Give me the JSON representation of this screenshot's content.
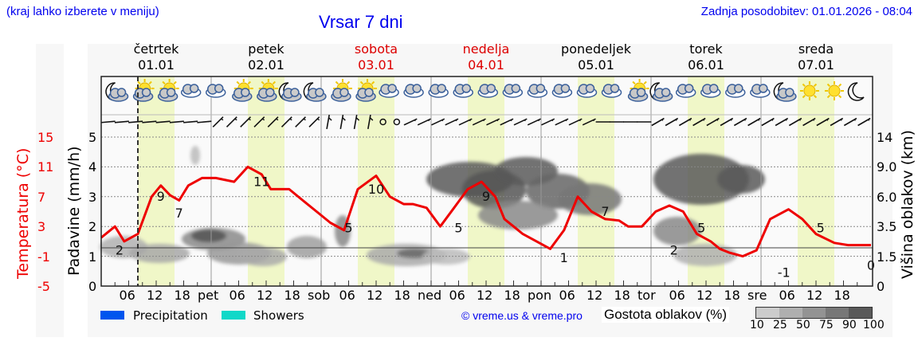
{
  "header": {
    "note": "(kraj lahko izberete v meniju)",
    "title": "Vrsar 7 dni",
    "updated": "Zadnja posodobitev: 01.01.2026 - 08:04"
  },
  "days": [
    {
      "name": "četrtek",
      "date": "01.01",
      "weekend": false
    },
    {
      "name": "petek",
      "date": "02.01",
      "weekend": false
    },
    {
      "name": "sobota",
      "date": "03.01",
      "weekend": true
    },
    {
      "name": "nedelja",
      "date": "04.01",
      "weekend": true
    },
    {
      "name": "ponedeljek",
      "date": "05.01",
      "weekend": false
    },
    {
      "name": "torek",
      "date": "06.01",
      "weekend": false
    },
    {
      "name": "sreda",
      "date": "07.01",
      "weekend": false
    }
  ],
  "weather_icons": [
    "moon-cloud",
    "sun-cloud",
    "sun-cloud",
    "cloud",
    "cloud",
    "sun-cloud",
    "sun-cloud",
    "moon-cloud",
    "moon-cloud",
    "sun-cloud",
    "sun-cloud",
    "cloud",
    "cloud",
    "cloud",
    "cloud",
    "cloud",
    "cloud",
    "cloud",
    "cloud",
    "cloud",
    "cloud",
    "sun-cloud",
    "moon-cloud",
    "cloud",
    "cloud",
    "cloud",
    "cloud",
    "moon-cloud",
    "sun",
    "sun",
    "moon"
  ],
  "axes": {
    "left_temp_label": "Temperatura (°C)",
    "left_temp_ticks": [
      "15",
      "11",
      "7",
      "3",
      "-1",
      "-5"
    ],
    "left_precip_label": "Padavine (mm/h)",
    "left_precip_ticks": [
      "5",
      "4",
      "3",
      "2",
      "1",
      "0"
    ],
    "right_label": "Višina oblakov (km)",
    "right_ticks": [
      "14",
      "9.0",
      "6.0",
      "3.5",
      "1.5",
      "0"
    ],
    "x_ticks": [
      "06",
      "12",
      "18",
      "pet",
      "06",
      "12",
      "18",
      "sob",
      "06",
      "12",
      "18",
      "ned",
      "06",
      "12",
      "18",
      "pon",
      "06",
      "12",
      "18",
      "tor",
      "06",
      "12",
      "18",
      "sre",
      "06",
      "12",
      "18"
    ]
  },
  "legend": {
    "precip_label": "Precipitation",
    "precip_color": "#0055ee",
    "showers_label": "Showers",
    "showers_color": "#11d8c8",
    "copyright": "© vreme.us & vreme.pro",
    "cloud_density_label": "Gostota oblakov (%)",
    "cloud_density_ticks": [
      "10",
      "25",
      "50",
      "75",
      "90",
      "100"
    ],
    "cloud_density_colors": [
      "#cccccc",
      "#afafaf",
      "#939393",
      "#777777",
      "#595959"
    ]
  },
  "chart_data": {
    "type": "line",
    "title": "Vrsar 7 dni",
    "xlabel": "",
    "ylabel": "Temperatura (°C)",
    "ylim": [
      -5,
      15
    ],
    "now_marker_hour": 8,
    "series": [
      {
        "name": "Temperatura (°C)",
        "color": "#ee0000",
        "hours": [
          0,
          3,
          5,
          8,
          11,
          13,
          15,
          17,
          19,
          22,
          25,
          29,
          32,
          35,
          37,
          41,
          44,
          47,
          50,
          53,
          56,
          60,
          63,
          66,
          68,
          71,
          74,
          77,
          80,
          83,
          86,
          88,
          90,
          92,
          95,
          98,
          101,
          104,
          107,
          110,
          113,
          115,
          118,
          121,
          124,
          127,
          130,
          133,
          135,
          137,
          140,
          143,
          146,
          150,
          153,
          156,
          160,
          163,
          166,
          168
        ],
        "values": [
          1.5,
          3,
          1,
          2,
          7,
          8.5,
          7.2,
          6.5,
          8.5,
          9.5,
          9.5,
          9,
          11,
          10,
          8,
          8,
          6.5,
          5,
          3.5,
          2.5,
          8,
          9.8,
          7,
          6,
          6,
          5.5,
          3,
          5.5,
          8,
          9,
          7,
          4,
          3,
          2,
          1,
          0,
          2.5,
          7,
          5,
          4,
          3.8,
          3,
          3,
          5,
          5.8,
          5,
          2,
          1,
          0,
          -0.5,
          -1,
          -0.2,
          4,
          5.3,
          4,
          2,
          0.8,
          0.5,
          0.5,
          0.5
        ]
      }
    ],
    "extrema_labels": [
      {
        "hour": 4,
        "value": 2
      },
      {
        "hour": 13,
        "value": 9
      },
      {
        "hour": 17,
        "value": 7
      },
      {
        "hour": 35,
        "value": 11
      },
      {
        "hour": 54,
        "value": 5
      },
      {
        "hour": 60,
        "value": 10
      },
      {
        "hour": 78,
        "value": 5
      },
      {
        "hour": 84,
        "value": 9
      },
      {
        "hour": 101,
        "value": 1
      },
      {
        "hour": 110,
        "value": 7
      },
      {
        "hour": 125,
        "value": 2
      },
      {
        "hour": 131,
        "value": 5
      },
      {
        "hour": 149,
        "value": -1
      },
      {
        "hour": 157,
        "value": 5
      },
      {
        "hour": 168,
        "value": 0
      }
    ],
    "precip_axis": {
      "label": "Padavine (mm/h)",
      "ylim": [
        0,
        5
      ]
    },
    "cloud_height_axis": {
      "label": "Višina oblakov (km)",
      "ticks": [
        0,
        1.5,
        3.5,
        6.0,
        9.0,
        14
      ]
    },
    "precipitation_mm_h": [],
    "cloud_density_legend": [
      10,
      25,
      50,
      75,
      90,
      100
    ]
  }
}
